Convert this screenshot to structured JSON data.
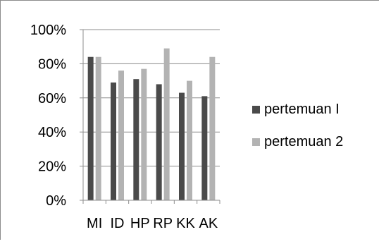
{
  "chart_data": {
    "type": "bar",
    "categories": [
      "MI",
      "ID",
      "HP",
      "RP",
      "KK",
      "AK"
    ],
    "series": [
      {
        "name": "pertemuan I",
        "values": [
          84,
          69,
          71,
          68,
          63,
          61
        ],
        "color": "#4a4a4a"
      },
      {
        "name": "pertemuan 2",
        "values": [
          84,
          76,
          77,
          89,
          70,
          84
        ],
        "color": "#b3b3b3"
      }
    ],
    "yticks": [
      "0%",
      "20%",
      "40%",
      "60%",
      "80%",
      "100%"
    ],
    "ylim": [
      0,
      100
    ],
    "grid": true,
    "legend_position": "right"
  }
}
